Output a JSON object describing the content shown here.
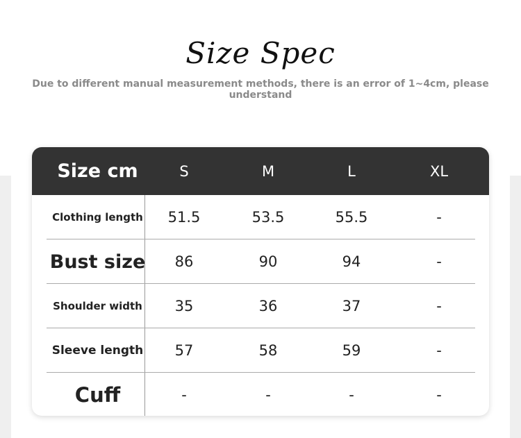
{
  "title": "Size Spec",
  "subtitle": "Due to different manual measurement methods, there is an error of 1~4cm, please understand",
  "table": {
    "header": [
      "Size cm",
      "S",
      "M",
      "L",
      "XL"
    ],
    "rows": [
      {
        "label": "Clothing length",
        "values": [
          "51.5",
          "53.5",
          "55.5",
          "-"
        ]
      },
      {
        "label": "Bust size",
        "values": [
          "86",
          "90",
          "94",
          "-"
        ]
      },
      {
        "label": "Shoulder width",
        "values": [
          "35",
          "36",
          "37",
          "-"
        ]
      },
      {
        "label": "Sleeve length",
        "values": [
          "57",
          "58",
          "59",
          "-"
        ]
      },
      {
        "label": "Cuff",
        "values": [
          "-",
          "-",
          "-",
          "-"
        ]
      }
    ]
  }
}
